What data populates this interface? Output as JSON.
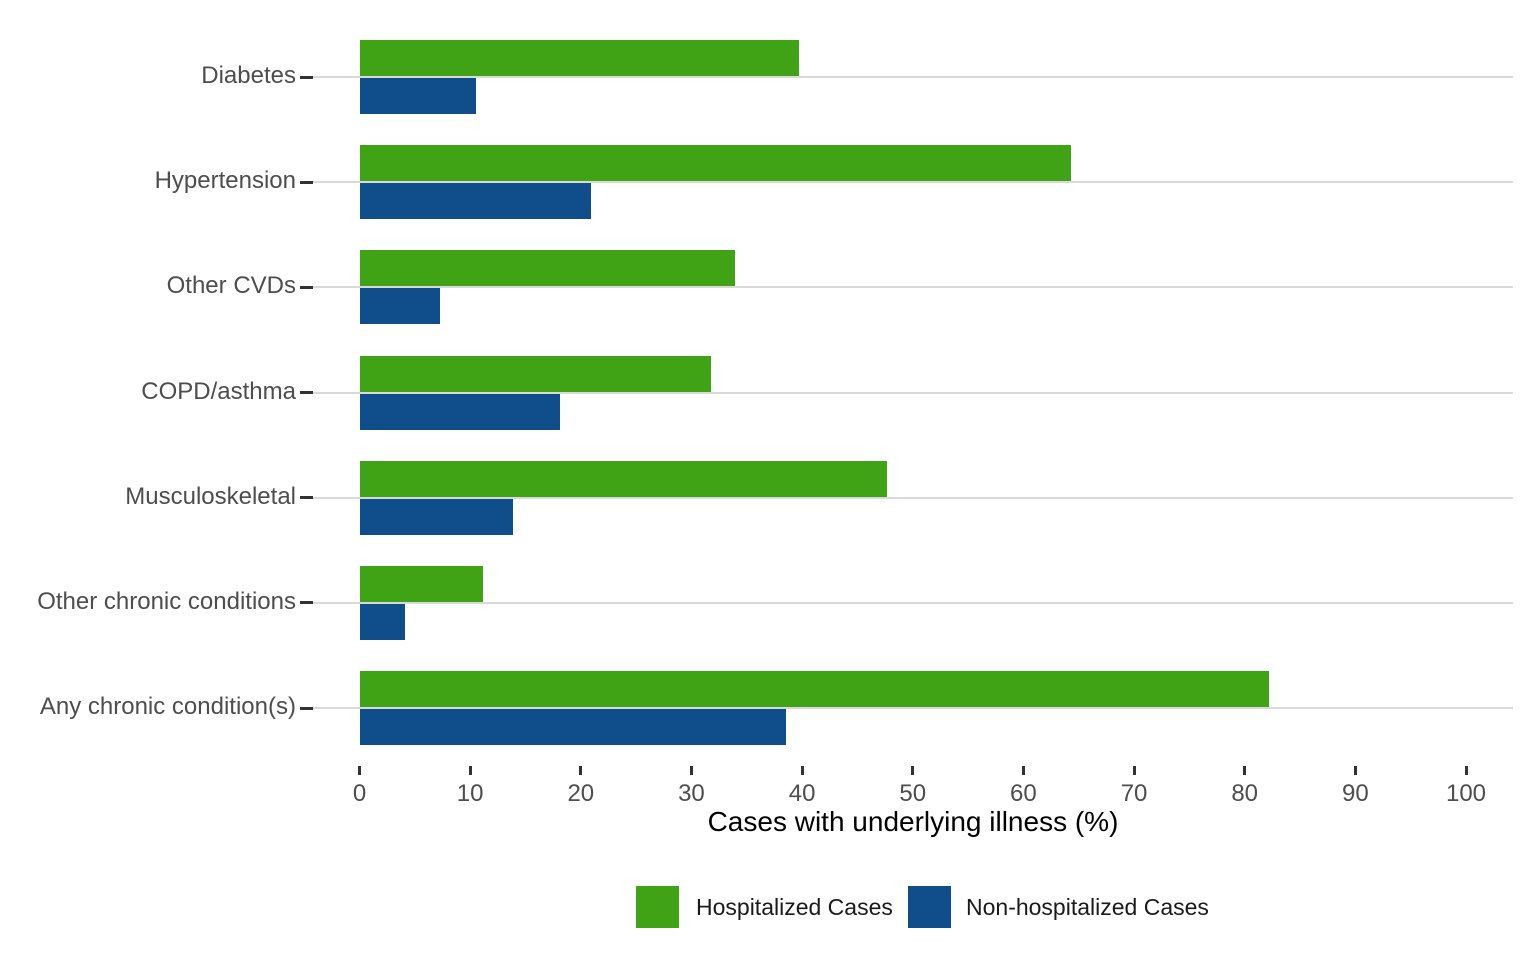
{
  "chart_data": {
    "type": "bar",
    "orientation": "horizontal",
    "title": "",
    "xlabel": "Cases with underlying illness (%)",
    "ylabel": "",
    "xlim": [
      0,
      100
    ],
    "x_ticks": [
      0,
      10,
      20,
      30,
      40,
      50,
      60,
      70,
      80,
      90,
      100
    ],
    "grid": "horizontal category gridlines only, white background",
    "legend_position": "bottom",
    "categories": [
      "Diabetes",
      "Hypertension",
      "Other CVDs",
      "COPD/asthma",
      "Musculoskeletal",
      "Other chronic conditions",
      "Any chronic condition(s)"
    ],
    "series": [
      {
        "name": "Hospitalized Cases",
        "color": "#3FA315",
        "values": [
          39.7,
          64.3,
          33.9,
          31.8,
          47.7,
          11.2,
          82.2
        ]
      },
      {
        "name": "Non-hospitalized Cases",
        "color": "#104E8B",
        "values": [
          10.5,
          20.9,
          7.3,
          18.1,
          13.9,
          4.1,
          38.5
        ]
      }
    ],
    "colors": {
      "gridline": "#d9d9d9",
      "tick_mark": "#333333",
      "axis_text": "#4d4d4d",
      "axis_title": "#000000",
      "legend_text": "#1a1a1a"
    }
  }
}
